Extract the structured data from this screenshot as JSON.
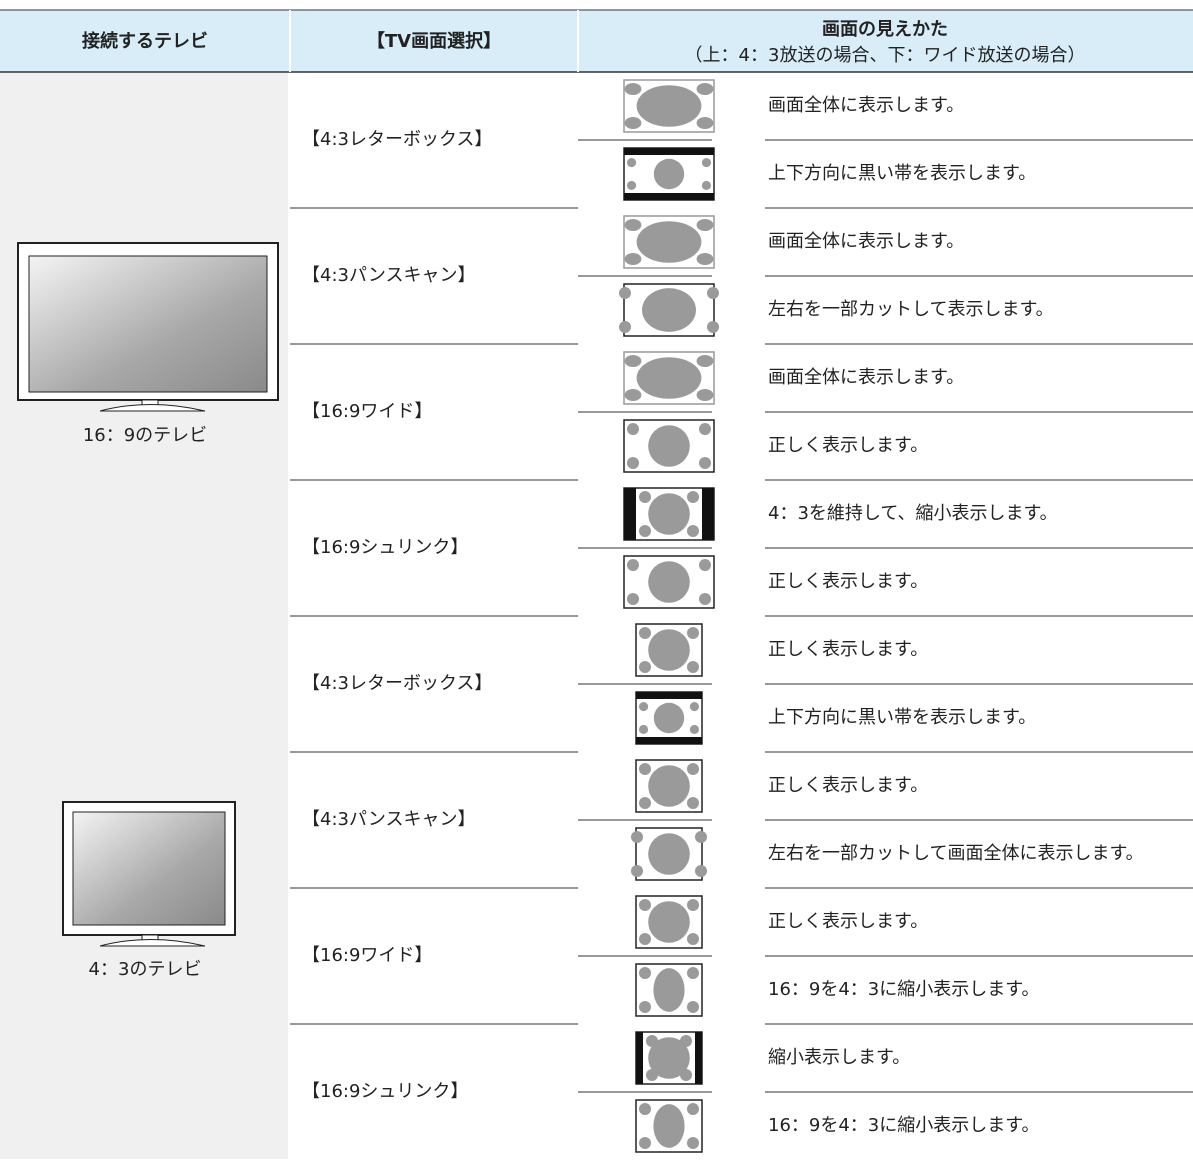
{
  "header": {
    "col1": "接続するテレビ",
    "col2": "【TV画面選択】",
    "col3_title": "画面の見えかた",
    "col3_sub": "（上：4：3放送の場合、下：ワイド放送の場合）"
  },
  "groups": [
    {
      "tv_label": "16：9のテレビ",
      "modes": [
        {
          "label": "【4:3レターボックス】",
          "rows": [
            "画面全体に表示します。",
            "上下方向に黒い帯を表示します。"
          ]
        },
        {
          "label": "【4:3パンスキャン】",
          "rows": [
            "画面全体に表示します。",
            "左右を一部カットして表示します。"
          ]
        },
        {
          "label": "【16:9ワイド】",
          "rows": [
            "画面全体に表示します。",
            "正しく表示します。"
          ]
        },
        {
          "label": "【16:9シュリンク】",
          "rows": [
            "4：3を維持して、縮小表示します。",
            "正しく表示します。"
          ]
        }
      ]
    },
    {
      "tv_label": "4：3のテレビ",
      "modes": [
        {
          "label": "【4:3レターボックス】",
          "rows": [
            "正しく表示します。",
            "上下方向に黒い帯を表示します。"
          ]
        },
        {
          "label": "【4:3パンスキャン】",
          "rows": [
            "正しく表示します。",
            "左右を一部カットして画面全体に表示します。"
          ]
        },
        {
          "label": "【16:9ワイド】",
          "rows": [
            "正しく表示します。",
            "16：9を4：3に縮小表示します。"
          ]
        },
        {
          "label": "【16:9シュリンク】",
          "rows": [
            "縮小表示します。",
            "16：9を4：3に縮小表示します。"
          ]
        }
      ]
    }
  ]
}
